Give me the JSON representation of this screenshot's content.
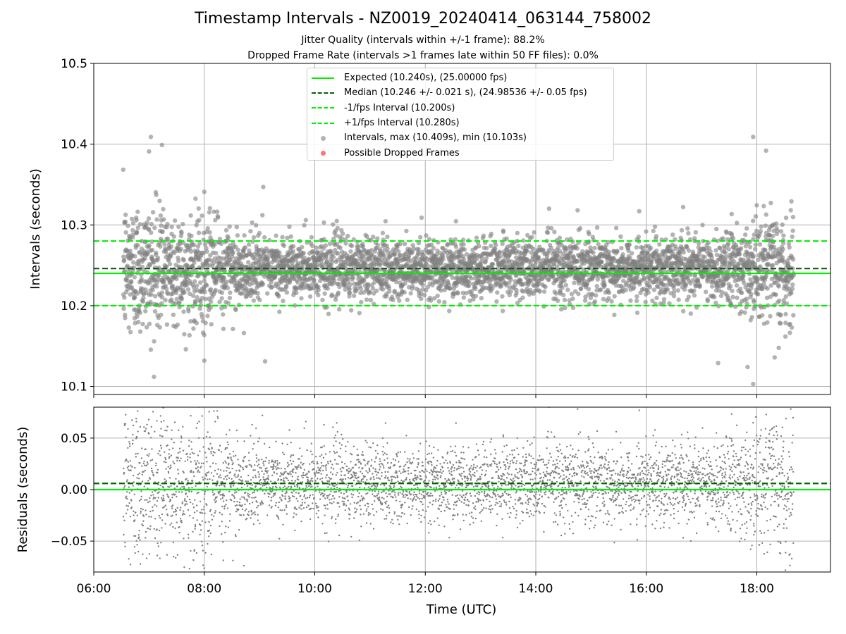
{
  "title": "Timestamp Intervals - NZ0019_20240414_063144_758002",
  "subtitle_jitter": "Jitter Quality (intervals within +/-1 frame): 88.2%",
  "subtitle_dropped": "Dropped Frame Rate (intervals >1 frames late within 50 FF files): 0.0%",
  "legend": [
    {
      "label": "Expected (10.240s), (25.00000 fps)",
      "kind": "line",
      "style": "solid",
      "color": "#00ee00"
    },
    {
      "label": "Median (10.246 +/- 0.021 s), (24.98536 +/- 0.05 fps)",
      "kind": "line",
      "style": "dashed",
      "color": "#006400"
    },
    {
      "label": "-1/fps Interval (10.200s)",
      "kind": "line",
      "style": "dashed",
      "color": "#00ee00"
    },
    {
      "label": "+1/fps Interval (10.280s)",
      "kind": "line",
      "style": "dashed",
      "color": "#00ee00"
    },
    {
      "label": "Intervals, max (10.409s), min (10.103s)",
      "kind": "dot",
      "color": "#808080"
    },
    {
      "label": "Possible Dropped Frames",
      "kind": "dot",
      "color": "#ff0000"
    }
  ],
  "colors": {
    "expected": "#00ee00",
    "median": "#006400",
    "points": "#808080",
    "dropped": "#ff0000",
    "grid": "#b0b0b0"
  },
  "chart_data": [
    {
      "type": "scatter",
      "title": "Timestamp Intervals - NZ0019_20240414_063144_758002",
      "ylabel": "Intervals (seconds)",
      "xlabel": "",
      "ylim": [
        10.09,
        10.5
      ],
      "xlim": [
        "06:00",
        "19:20"
      ],
      "y_ticks": [
        10.1,
        10.2,
        10.3,
        10.4,
        10.5
      ],
      "y_tick_labels": [
        "10.1",
        "10.2",
        "10.3",
        "10.4",
        "10.5"
      ],
      "x_ticks": [
        "06:00",
        "08:00",
        "10:00",
        "12:00",
        "14:00",
        "16:00",
        "18:00"
      ],
      "grid": true,
      "legend_position": "top-center",
      "reference_lines": [
        {
          "name": "Expected",
          "y": 10.24,
          "style": "solid",
          "color": "#00ee00"
        },
        {
          "name": "Median",
          "y": 10.246,
          "style": "dashed",
          "color": "#006400"
        },
        {
          "name": "-1/fps Interval",
          "y": 10.2,
          "style": "dashed",
          "color": "#00ee00"
        },
        {
          "name": "+1/fps Interval",
          "y": 10.28,
          "style": "dashed",
          "color": "#00ee00"
        }
      ],
      "series": [
        {
          "name": "Intervals",
          "color": "#808080",
          "count": 4230,
          "time_start": "06:32",
          "time_end": "18:40",
          "center": 10.246,
          "spread_std": 0.021,
          "max": 10.409,
          "min": 10.103,
          "sample_points": [
            [
              "07:02",
              10.409
            ],
            [
              "07:14",
              10.399
            ],
            [
              "07:00",
              10.391
            ],
            [
              "08:00",
              10.341
            ],
            [
              "09:04",
              10.347
            ],
            [
              "11:56",
              10.309
            ],
            [
              "16:40",
              10.322
            ],
            [
              "17:56",
              10.409
            ],
            [
              "18:10",
              10.392
            ],
            [
              "07:40",
              10.146
            ],
            [
              "08:00",
              10.132
            ],
            [
              "09:06",
              10.131
            ],
            [
              "17:18",
              10.129
            ],
            [
              "17:50",
              10.124
            ],
            [
              "17:56",
              10.103
            ]
          ]
        },
        {
          "name": "Possible Dropped Frames",
          "color": "#ff0000",
          "count": 0,
          "points": []
        }
      ]
    },
    {
      "type": "scatter",
      "ylabel": "Residuals (seconds)",
      "xlabel": "Time (UTC)",
      "ylim": [
        -0.08,
        0.08
      ],
      "xlim": [
        "06:00",
        "19:20"
      ],
      "y_ticks": [
        -0.05,
        0.0,
        0.05
      ],
      "y_tick_labels": [
        "−0.05",
        "0.00",
        "0.05"
      ],
      "x_ticks": [
        "06:00",
        "08:00",
        "10:00",
        "12:00",
        "14:00",
        "16:00",
        "18:00"
      ],
      "x_tick_labels": [
        "06:00",
        "08:00",
        "10:00",
        "12:00",
        "14:00",
        "16:00",
        "18:00"
      ],
      "grid": true,
      "reference_lines": [
        {
          "name": "Zero",
          "y": 0.0,
          "style": "solid",
          "color": "#00ee00"
        },
        {
          "name": "Median residual",
          "y": 0.006,
          "style": "dashed",
          "color": "#006400"
        }
      ],
      "series": [
        {
          "name": "Residuals",
          "color": "#808080",
          "count": 4230,
          "time_start": "06:32",
          "time_end": "18:40",
          "center": 0.006,
          "spread_std": 0.021
        }
      ]
    }
  ]
}
